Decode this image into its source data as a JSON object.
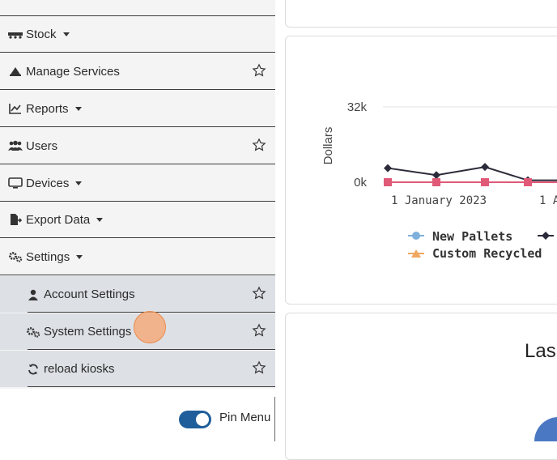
{
  "sidebar": {
    "items": [
      {
        "label": "Stock",
        "icon": "truck-icon",
        "caret": true,
        "star": false
      },
      {
        "label": "Manage Services",
        "icon": "bell-icon",
        "caret": false,
        "star": true
      },
      {
        "label": "Reports",
        "icon": "line-chart-icon",
        "caret": true,
        "star": false
      },
      {
        "label": "Users",
        "icon": "users-icon",
        "caret": false,
        "star": true
      },
      {
        "label": "Devices",
        "icon": "monitor-icon",
        "caret": true,
        "star": false
      },
      {
        "label": "Export Data",
        "icon": "file-export-icon",
        "caret": true,
        "star": false
      },
      {
        "label": "Settings",
        "icon": "gears-icon",
        "caret": true,
        "star": false
      }
    ],
    "settings_submenu": [
      {
        "label": "Account Settings",
        "icon": "user-icon"
      },
      {
        "label": "System Settings",
        "icon": "gears-icon"
      },
      {
        "label": "reload kiosks",
        "icon": "refresh-icon"
      }
    ],
    "pin_menu": {
      "label": "Pin Menu",
      "on": true
    }
  },
  "chart_data": {
    "type": "line",
    "ylabel": "Dollars",
    "yticks": [
      "32k",
      "0k"
    ],
    "xticks": [
      "1 January 2023",
      "1 A"
    ],
    "legend": [
      "New Pallets",
      "Custom Recycled"
    ],
    "legend_position": "bottom",
    "series": [
      {
        "name": "",
        "color": "#2b2b3a",
        "marker": "diamond",
        "values": [
          6000,
          3000,
          6500,
          800
        ]
      },
      {
        "name": "Custom Recycled",
        "color": "#e05a78",
        "marker": "square",
        "values": [
          0,
          0,
          0,
          0
        ]
      }
    ],
    "legend_colors": [
      "#7fb0dc",
      "#f0a860"
    ]
  },
  "bottom_card": {
    "title": "Las"
  }
}
